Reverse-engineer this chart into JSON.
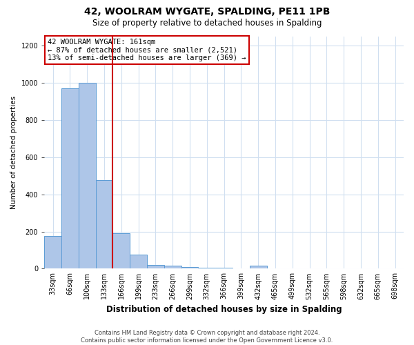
{
  "title": "42, WOOLRAM WYGATE, SPALDING, PE11 1PB",
  "subtitle": "Size of property relative to detached houses in Spalding",
  "xlabel": "Distribution of detached houses by size in Spalding",
  "ylabel": "Number of detached properties",
  "bins": [
    "33sqm",
    "66sqm",
    "100sqm",
    "133sqm",
    "166sqm",
    "199sqm",
    "233sqm",
    "266sqm",
    "299sqm",
    "332sqm",
    "366sqm",
    "399sqm",
    "432sqm",
    "465sqm",
    "499sqm",
    "532sqm",
    "565sqm",
    "598sqm",
    "632sqm",
    "665sqm",
    "698sqm"
  ],
  "values": [
    175,
    970,
    1000,
    475,
    190,
    75,
    20,
    15,
    10,
    5,
    5,
    2,
    15,
    0,
    0,
    0,
    0,
    0,
    0,
    0,
    0
  ],
  "bar_color": "#aec6e8",
  "bar_edge_color": "#5b9bd5",
  "property_line_bin_index": 4,
  "property_line_color": "#cc0000",
  "annotation_text": "42 WOOLRAM WYGATE: 161sqm\n← 87% of detached houses are smaller (2,521)\n13% of semi-detached houses are larger (369) →",
  "annotation_box_color": "#ffffff",
  "annotation_box_edge_color": "#cc0000",
  "ylim": [
    0,
    1250
  ],
  "yticks": [
    0,
    200,
    400,
    600,
    800,
    1000,
    1200
  ],
  "footer": "Contains HM Land Registry data © Crown copyright and database right 2024.\nContains public sector information licensed under the Open Government Licence v3.0.",
  "bg_color": "#ffffff",
  "grid_color": "#d0dff0",
  "title_fontsize": 10,
  "subtitle_fontsize": 8.5,
  "xlabel_fontsize": 8.5,
  "ylabel_fontsize": 7.5,
  "tick_fontsize": 7,
  "footer_fontsize": 6,
  "annot_fontsize": 7.5
}
